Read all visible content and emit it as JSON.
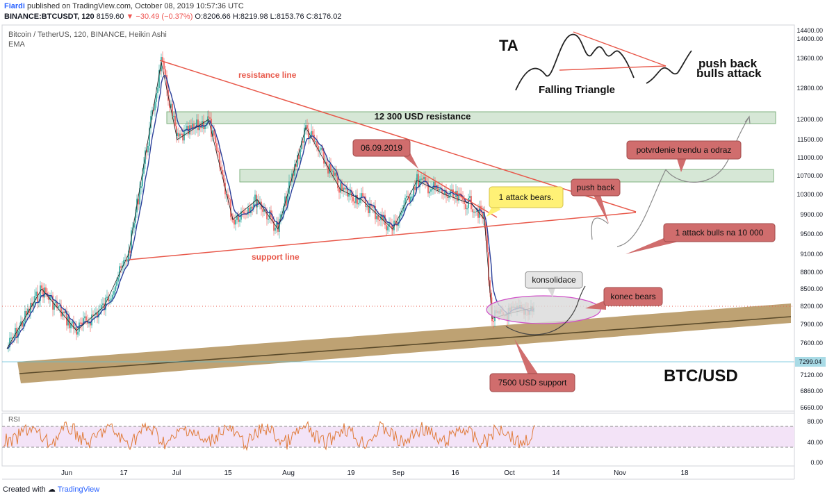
{
  "header": {
    "author": "Fiardi",
    "published": "published on TradingView.com, October 08, 2019 10:57:36 UTC",
    "symbol": "BINANCE:BTCUSDT, 120",
    "last": "8159.60",
    "change": "▼ −30.49 (−0.37%)",
    "ohlc": "O:8206.66 H:8219.98 L:8153.76 C:8176.02"
  },
  "legend": {
    "title": "Bitcoin / TetherUS, 120, BINANCE, Heikin Ashi",
    "indicator": "EMA"
  },
  "footer": {
    "created_with": "Created with",
    "brand": "TradingView"
  },
  "colors": {
    "trend_line": "#e8584a",
    "zone_fill": "#b3925a",
    "box_fill": "#c8dfc8",
    "callout_red": "#d06d6d",
    "callout_yellow": "#fff176",
    "ema": "#2a3f9a",
    "rsi": "#e07b39",
    "rsi_band": "#f3e3f7",
    "price_tag": "#a9dbe6"
  },
  "chart_data": {
    "type": "line",
    "title": "",
    "price_axis": {
      "ticks": [
        "14400.00",
        "14000.00",
        "13600.00",
        "12800.00",
        "12000.00",
        "11500.00",
        "11000.00",
        "10700.00",
        "10300.00",
        "9900.00",
        "9500.00",
        "9100.00",
        "8800.00",
        "8500.00",
        "8200.00",
        "7900.00",
        "7600.00",
        "7300.00",
        "7120.00",
        "6860.00",
        "6660.00"
      ],
      "current_price_tag": "7299.04"
    },
    "time_axis": {
      "ticks": [
        "Jun",
        "17",
        "Jul",
        "15",
        "Aug",
        "19",
        "Sep",
        "16",
        "Oct",
        "14",
        "Nov",
        "18"
      ]
    },
    "rsi_axis": {
      "ticks": [
        "80.00",
        "40.00",
        "0.00"
      ],
      "label": "RSI"
    },
    "series": [
      {
        "name": "BTC/USDT price",
        "x": [
          "May 22",
          "May 29",
          "Jun 05",
          "Jun 12",
          "Jun 19",
          "Jun 26",
          "Jul 03",
          "Jul 10",
          "Jul 17",
          "Jul 24",
          "Jul 31",
          "Aug 07",
          "Aug 14",
          "Aug 21",
          "Aug 28",
          "Sep 04",
          "Sep 11",
          "Sep 18",
          "Sep 23",
          "Sep 25",
          "Oct 01",
          "Oct 08"
        ],
        "y": [
          7500,
          8500,
          7800,
          8200,
          9100,
          13500,
          11500,
          12000,
          9800,
          10200,
          9600,
          11800,
          10400,
          10200,
          9600,
          10600,
          10300,
          10100,
          9800,
          8000,
          8100,
          8176
        ]
      }
    ],
    "annotations": [
      "TA",
      "Falling Triangle",
      "push back",
      "bulls attack",
      "resistance line",
      "12 300 USD resistance",
      "06.09.2019",
      "1 attack bears.",
      "push back",
      "potvrdenie trendu a odraz",
      "1 attack bulls  na 10 000",
      "support line",
      "konsolidace",
      "konec bears",
      "7500 USD support",
      "BTC/USD"
    ]
  }
}
